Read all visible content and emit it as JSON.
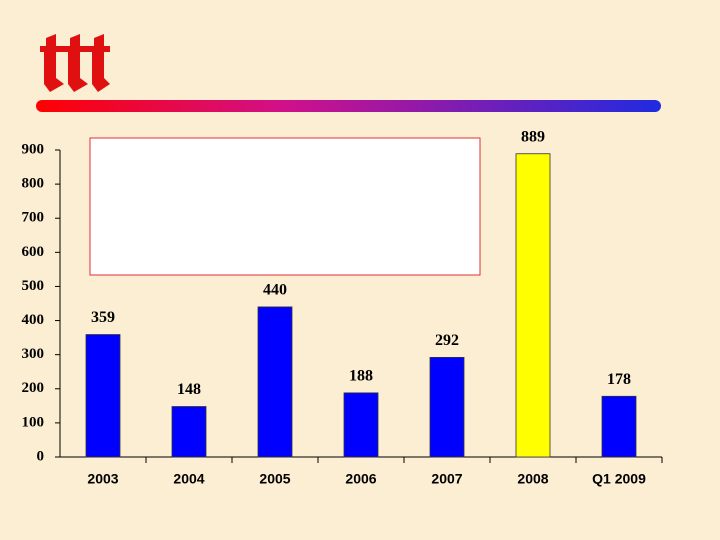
{
  "chart_data": {
    "type": "bar",
    "categories": [
      "2003",
      "2004",
      "2005",
      "2006",
      "2007",
      "2008",
      "Q1 2009"
    ],
    "values": [
      359,
      148,
      440,
      188,
      292,
      889,
      178
    ],
    "colors": [
      "#0000ff",
      "#0000ff",
      "#0000ff",
      "#0000ff",
      "#0000ff",
      "#ffff00",
      "#0000ff"
    ],
    "ylim": [
      0,
      900
    ],
    "yticks": [
      0,
      100,
      200,
      300,
      400,
      500,
      600,
      700,
      800,
      900
    ],
    "grid": false
  }
}
